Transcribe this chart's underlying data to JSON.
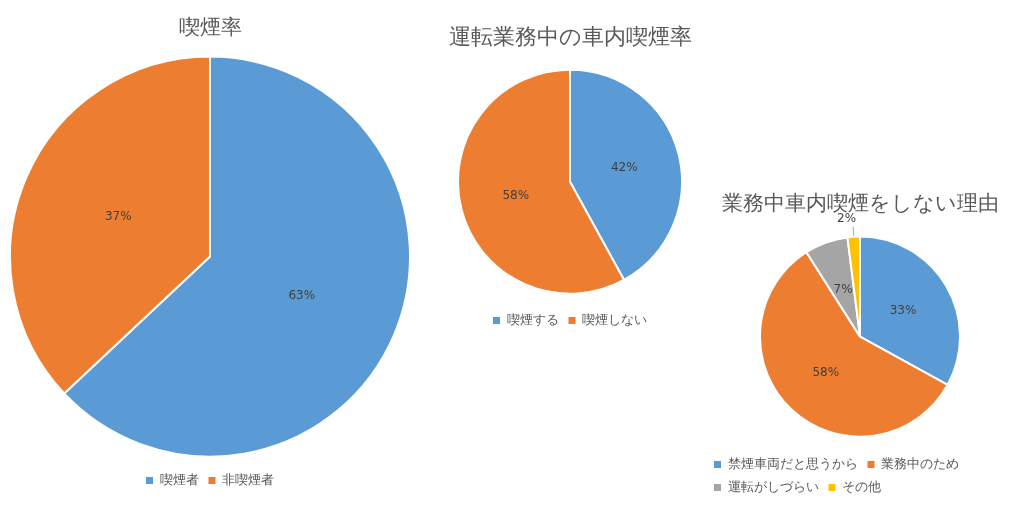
{
  "chart_data": [
    {
      "type": "pie",
      "title": "喫煙率",
      "categories": [
        "喫煙者",
        "非喫煙者"
      ],
      "values": [
        63,
        37
      ],
      "colors": [
        "#5b9bd5",
        "#ed7d31"
      ],
      "value_labels": [
        "63%",
        "37%"
      ],
      "legend": "bottom"
    },
    {
      "type": "pie",
      "title": "運転業務中の車内喫煙率",
      "categories": [
        "喫煙する",
        "喫煙しない"
      ],
      "values": [
        42,
        58
      ],
      "colors": [
        "#5b9bd5",
        "#ed7d31"
      ],
      "value_labels": [
        "42%",
        "58%"
      ],
      "legend": "bottom"
    },
    {
      "type": "pie",
      "title": "業務中車内喫煙をしない理由",
      "categories": [
        "禁煙車両だと思うから",
        "業務中のため",
        "運転がしづらい",
        "その他"
      ],
      "values": [
        33,
        58,
        7,
        2
      ],
      "colors": [
        "#5b9bd5",
        "#ed7d31",
        "#a5a5a5",
        "#ffc000"
      ],
      "value_labels": [
        "33%",
        "58%",
        "7%",
        "2%"
      ],
      "legend": "bottom"
    }
  ]
}
